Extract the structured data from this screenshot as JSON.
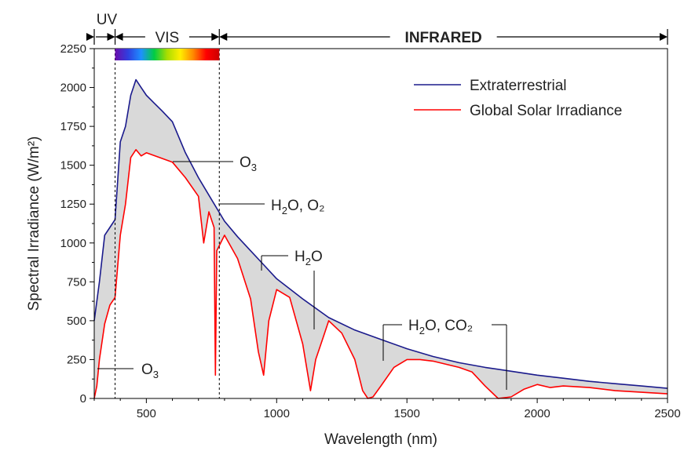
{
  "chart_data": {
    "type": "area",
    "xlabel": "Wavelength (nm)",
    "ylabel": "Spectral Irradiance (W/m²)",
    "xlim": [
      300,
      2500
    ],
    "ylim": [
      0,
      2250
    ],
    "x_ticks": [
      "500",
      "1000",
      "1500",
      "2000",
      "2500"
    ],
    "y_ticks": [
      "0",
      "250",
      "500",
      "750",
      "1000",
      "1250",
      "1500",
      "1750",
      "2000",
      "2250"
    ],
    "grid": false,
    "legend_placement": "top-right",
    "fill_between_series": true,
    "colors": {
      "extraterrestrial": "#1a1a8c",
      "global": "#ff0000",
      "fill": "#d9d9d9",
      "spectrum_bar": [
        "#6a0dad",
        "#2f3fe0",
        "#1e90ff",
        "#00cc44",
        "#aadd00",
        "#ffee00",
        "#ff8800",
        "#ff0000",
        "#cc0000"
      ]
    },
    "regions": [
      {
        "label": "UV",
        "x_start": 300,
        "x_end": 380
      },
      {
        "label": "VIS",
        "x_start": 380,
        "x_end": 780
      },
      {
        "label": "INFRARED",
        "x_start": 780,
        "x_end": 2500
      }
    ],
    "series": [
      {
        "name": "Extraterrestrial",
        "x": [
          300,
          320,
          340,
          360,
          380,
          400,
          420,
          440,
          460,
          480,
          500,
          530,
          560,
          600,
          650,
          700,
          750,
          800,
          850,
          900,
          950,
          1000,
          1100,
          1200,
          1300,
          1400,
          1500,
          1600,
          1700,
          1800,
          1900,
          2000,
          2100,
          2200,
          2300,
          2400,
          2500
        ],
        "y": [
          500,
          750,
          1050,
          1100,
          1150,
          1650,
          1750,
          1950,
          2050,
          2000,
          1950,
          1900,
          1850,
          1780,
          1580,
          1420,
          1280,
          1140,
          1040,
          950,
          860,
          770,
          640,
          520,
          440,
          380,
          320,
          270,
          230,
          200,
          175,
          150,
          130,
          110,
          95,
          80,
          65
        ]
      },
      {
        "name": "Global Solar Irradiance",
        "x": [
          300,
          310,
          320,
          340,
          360,
          380,
          400,
          420,
          440,
          460,
          480,
          500,
          550,
          600,
          650,
          700,
          720,
          740,
          760,
          765,
          770,
          800,
          850,
          900,
          930,
          950,
          970,
          1000,
          1050,
          1100,
          1130,
          1150,
          1180,
          1200,
          1250,
          1300,
          1330,
          1350,
          1370,
          1400,
          1450,
          1500,
          1550,
          1600,
          1700,
          1750,
          1800,
          1850,
          1900,
          1950,
          2000,
          2050,
          2100,
          2200,
          2300,
          2400,
          2500
        ],
        "y": [
          0,
          80,
          250,
          480,
          600,
          650,
          1050,
          1250,
          1550,
          1600,
          1560,
          1580,
          1550,
          1520,
          1420,
          1300,
          1000,
          1200,
          1100,
          150,
          950,
          1050,
          900,
          640,
          300,
          150,
          500,
          700,
          650,
          350,
          50,
          250,
          400,
          500,
          420,
          250,
          50,
          0,
          10,
          80,
          200,
          250,
          250,
          240,
          200,
          170,
          80,
          0,
          10,
          60,
          90,
          70,
          80,
          70,
          50,
          40,
          30
        ]
      }
    ],
    "annotations": [
      {
        "label": "O",
        "sub": "3",
        "rest": "",
        "x": 600,
        "y": 1520
      },
      {
        "label": "H",
        "sub": "2",
        "rest": "O, O₂",
        "x": 760,
        "y": 1250
      },
      {
        "label": "H",
        "sub": "2",
        "rest": "O",
        "x": 930,
        "y": 900
      },
      {
        "label": "H",
        "sub": "2",
        "rest": "O",
        "x": 1130,
        "y": 450
      },
      {
        "label": "H",
        "sub": "2",
        "rest": "O, CO₂",
        "x": 1400,
        "y": 250
      },
      {
        "label": "O",
        "sub": "3",
        "rest": "",
        "x": 310,
        "y": 200
      }
    ]
  }
}
